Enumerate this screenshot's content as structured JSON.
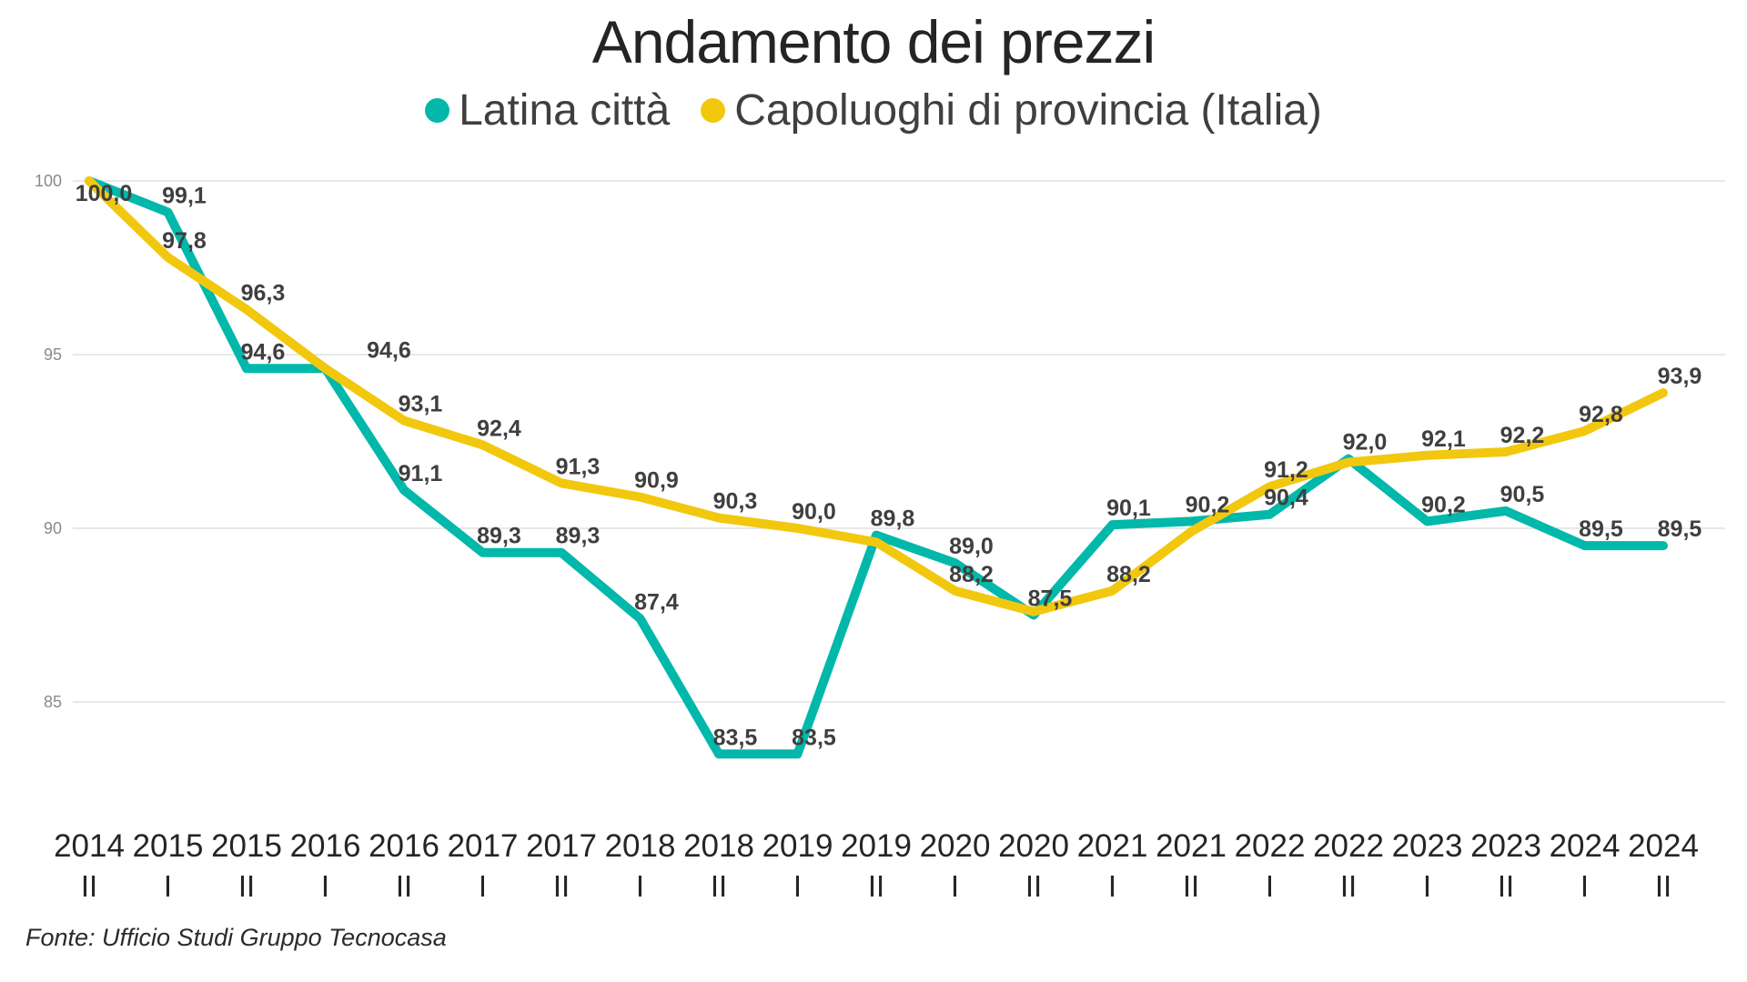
{
  "header": {
    "title": "Andamento dei prezzi"
  },
  "legend": {
    "items": [
      {
        "label": "Latina città",
        "color": "#01B8AA"
      },
      {
        "label": "Capoluoghi di provincia (Italia)",
        "color": "#F2C80F"
      }
    ]
  },
  "footer": {
    "source": "Fonte: Ufficio Studi Gruppo Tecnocasa"
  },
  "colors": {
    "series_latina": "#01B8AA",
    "series_capoluoghi": "#F2C80F",
    "gridline": "#e8e8e8",
    "y_tick_label": "#8a8a8a",
    "x_tick_label": "#252525",
    "data_label": "#3f3f3f",
    "background": "#ffffff"
  },
  "chart_data": {
    "type": "line",
    "title": "Andamento dei prezzi",
    "xlabel": "",
    "ylabel": "",
    "grid": true,
    "legend_position": "top",
    "ylim": [
      82.5,
      100.5
    ],
    "y_ticks": [
      85,
      90,
      95,
      100
    ],
    "categories": [
      {
        "year": "2014",
        "sem": "II"
      },
      {
        "year": "2015",
        "sem": "I"
      },
      {
        "year": "2015",
        "sem": "II"
      },
      {
        "year": "2016",
        "sem": "I"
      },
      {
        "year": "2016",
        "sem": "II"
      },
      {
        "year": "2017",
        "sem": "I"
      },
      {
        "year": "2017",
        "sem": "II"
      },
      {
        "year": "2018",
        "sem": "I"
      },
      {
        "year": "2018",
        "sem": "II"
      },
      {
        "year": "2019",
        "sem": "I"
      },
      {
        "year": "2019",
        "sem": "II"
      },
      {
        "year": "2020",
        "sem": "I"
      },
      {
        "year": "2020",
        "sem": "II"
      },
      {
        "year": "2021",
        "sem": "I"
      },
      {
        "year": "2021",
        "sem": "II"
      },
      {
        "year": "2022",
        "sem": "I"
      },
      {
        "year": "2022",
        "sem": "II"
      },
      {
        "year": "2023",
        "sem": "I"
      },
      {
        "year": "2023",
        "sem": "II"
      },
      {
        "year": "2024",
        "sem": "I"
      },
      {
        "year": "2024",
        "sem": "II"
      }
    ],
    "series": [
      {
        "name": "Latina città",
        "color": "#01B8AA",
        "values": [
          100.0,
          99.1,
          94.6,
          94.6,
          91.1,
          89.3,
          89.3,
          87.4,
          83.5,
          83.5,
          89.8,
          89.0,
          87.5,
          90.1,
          90.2,
          90.4,
          92.0,
          90.2,
          90.5,
          89.5,
          89.5
        ],
        "labels": [
          "100,0",
          "99,1",
          "94,6",
          "",
          "91,1",
          "89,3",
          "89,3",
          "87,4",
          "83,5",
          "83,5",
          "89,8",
          "89,0",
          "87,5",
          "90,1",
          "90,2",
          "90,4",
          "92,0",
          "90,2",
          "90,5",
          "89,5",
          "89,5"
        ]
      },
      {
        "name": "Capoluoghi di provincia (Italia)",
        "color": "#F2C80F",
        "values": [
          100.0,
          97.8,
          96.3,
          94.6,
          93.1,
          92.4,
          91.3,
          90.9,
          90.3,
          90.0,
          89.6,
          88.2,
          87.6,
          88.2,
          89.9,
          91.2,
          91.9,
          92.1,
          92.2,
          92.8,
          93.9
        ],
        "labels": [
          "",
          "97,8",
          "96,3",
          "94,6",
          "93,1",
          "92,4",
          "91,3",
          "90,9",
          "90,3",
          "90,0",
          "",
          "88,2",
          "",
          "88,2",
          "",
          "91,2",
          "",
          "92,1",
          "92,2",
          "92,8",
          "93,9"
        ]
      }
    ]
  }
}
